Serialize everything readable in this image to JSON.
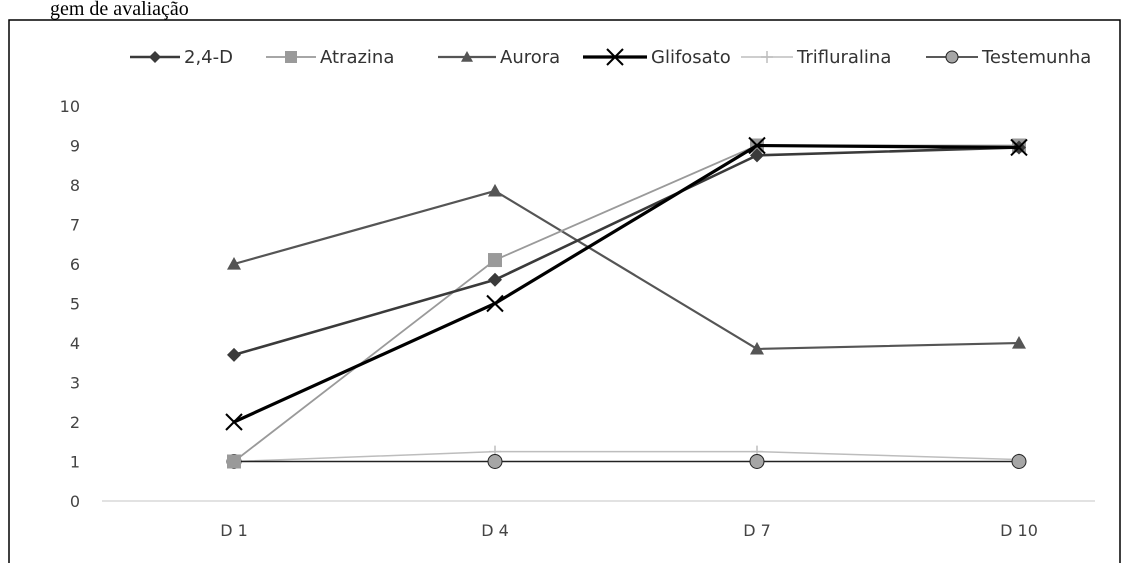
{
  "caption": "gem de avaliação",
  "chart_data": {
    "type": "line",
    "categories": [
      "D 1",
      "D 4",
      "D 7",
      "D 10"
    ],
    "ylim": [
      0,
      10
    ],
    "yticks": [
      0,
      1,
      2,
      3,
      4,
      5,
      6,
      7,
      8,
      9,
      10
    ],
    "grid": false,
    "legend_position": "top",
    "series": [
      {
        "name": "2,4-D",
        "values": [
          3.7,
          5.6,
          8.75,
          8.95
        ],
        "marker": "diamond",
        "color": "#3a3a3a"
      },
      {
        "name": "Atrazina",
        "values": [
          1.0,
          6.1,
          9.0,
          9.0
        ],
        "marker": "square",
        "color": "#9a9a9a"
      },
      {
        "name": "Aurora",
        "values": [
          6.0,
          7.85,
          3.85,
          4.0
        ],
        "marker": "triangle",
        "color": "#555555"
      },
      {
        "name": "Glifosato",
        "values": [
          2.0,
          5.0,
          9.0,
          8.95
        ],
        "marker": "x",
        "color": "#000000"
      },
      {
        "name": "Trifluralina",
        "values": [
          1.0,
          1.25,
          1.25,
          1.05
        ],
        "marker": "plus",
        "color": "#bdbdbd"
      },
      {
        "name": "Testemunha",
        "values": [
          1.0,
          1.0,
          1.0,
          1.0
        ],
        "marker": "circle",
        "color": "#222222"
      }
    ]
  }
}
